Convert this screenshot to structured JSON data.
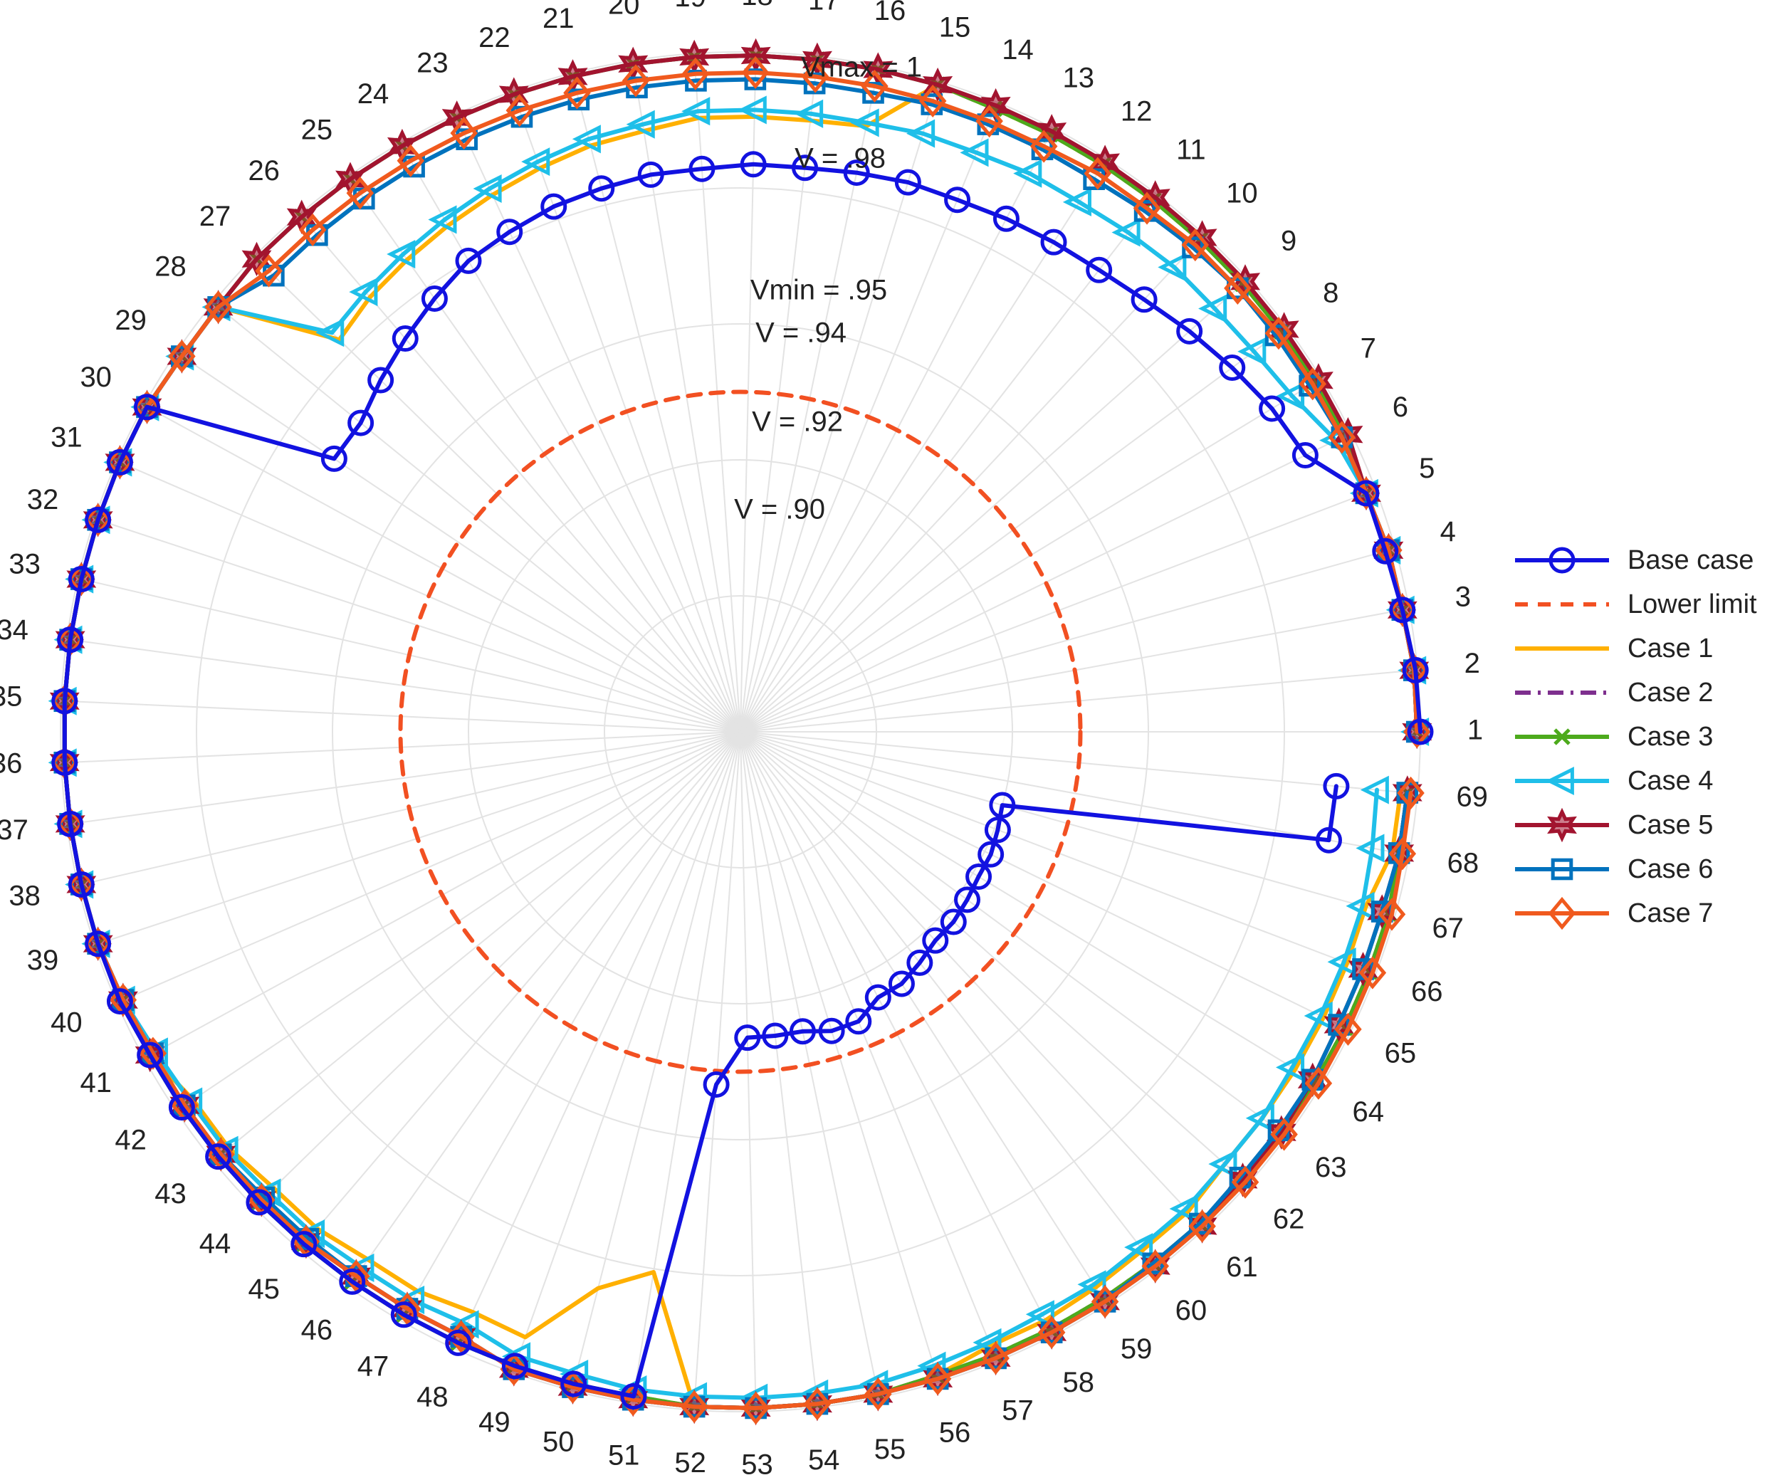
{
  "chart_data": {
    "type": "polar-line",
    "title": "",
    "angular_axis": {
      "labels": [
        "1",
        "2",
        "3",
        "4",
        "5",
        "6",
        "7",
        "8",
        "9",
        "10",
        "11",
        "12",
        "13",
        "14",
        "15",
        "16",
        "17",
        "18",
        "19",
        "20",
        "21",
        "22",
        "23",
        "24",
        "25",
        "26",
        "27",
        "28",
        "29",
        "30",
        "31",
        "32",
        "33",
        "34",
        "35",
        "36",
        "37",
        "38",
        "39",
        "40",
        "41",
        "42",
        "43",
        "44",
        "45",
        "46",
        "47",
        "48",
        "49",
        "50",
        "51",
        "52",
        "53",
        "54",
        "55",
        "56",
        "57",
        "58",
        "59",
        "60",
        "61",
        "62",
        "63",
        "64",
        "65",
        "66",
        "67",
        "68",
        "69"
      ],
      "direction": "counterclockwise",
      "start": "east"
    },
    "radial_axis": {
      "range": [
        0.9,
        1.0
      ],
      "ring_values": [
        1.0,
        0.98,
        0.95,
        0.94,
        0.92,
        0.9
      ],
      "ring_labels": [
        "Vmax = 1",
        "V = .98",
        "Vmin = .95",
        "V = .94",
        "V = .92",
        "V = .90"
      ]
    },
    "legend_position": "right",
    "series": [
      {
        "name": "Base case",
        "color": "#1212e0",
        "dash": "",
        "marker": "circle",
        "values": [
          1.0,
          0.9997,
          0.999,
          0.9985,
          0.9985,
          0.9925,
          0.9915,
          0.99,
          0.9885,
          0.987,
          0.986,
          0.9855,
          0.985,
          0.9845,
          0.9845,
          0.984,
          0.9835,
          0.9835,
          0.983,
          0.983,
          0.9825,
          0.982,
          0.981,
          0.98,
          0.978,
          0.976,
          0.974,
          0.972,
          0.972,
          0.9995,
          0.9995,
          0.9995,
          0.9995,
          0.9995,
          0.9995,
          0.9995,
          0.9995,
          0.9995,
          0.9995,
          0.9995,
          0.999,
          0.999,
          0.999,
          0.999,
          0.999,
          0.999,
          0.999,
          0.999,
          0.999,
          0.999,
          0.999,
          0.952,
          0.945,
          0.945,
          0.945,
          0.946,
          0.946,
          0.944,
          0.944,
          0.943,
          0.942,
          0.942,
          0.9415,
          0.941,
          0.941,
          0.9405,
          0.94,
          0.988,
          0.988
        ]
      },
      {
        "name": "Lower limit",
        "color": "#f25022",
        "dash": "18,14",
        "marker": "none",
        "values": [
          0.95,
          0.95,
          0.95,
          0.95,
          0.95,
          0.95,
          0.95,
          0.95,
          0.95,
          0.95,
          0.95,
          0.95,
          0.95,
          0.95,
          0.95,
          0.95,
          0.95,
          0.95,
          0.95,
          0.95,
          0.95,
          0.95,
          0.95,
          0.95,
          0.95,
          0.95,
          0.95,
          0.95,
          0.95,
          0.95,
          0.95,
          0.95,
          0.95,
          0.95,
          0.95,
          0.95,
          0.95,
          0.95,
          0.95,
          0.95,
          0.95,
          0.95,
          0.95,
          0.95,
          0.95,
          0.95,
          0.95,
          0.95,
          0.95,
          0.95,
          0.95,
          0.95,
          0.95,
          0.95,
          0.95,
          0.95,
          0.95,
          0.95,
          0.95,
          0.95,
          0.95,
          0.95,
          0.95,
          0.95,
          0.95,
          0.95,
          0.95,
          0.95,
          0.95
        ]
      },
      {
        "name": "Case 1",
        "color": "#ffb000",
        "dash": "",
        "marker": "none",
        "values": [
          0.9995,
          0.9995,
          0.999,
          0.999,
          0.9985,
          0.999,
          0.999,
          0.999,
          0.999,
          0.999,
          0.999,
          0.999,
          0.999,
          0.999,
          0.9995,
          0.991,
          0.9905,
          0.9905,
          0.9905,
          0.9895,
          0.989,
          0.988,
          0.987,
          0.986,
          0.985,
          0.984,
          0.9825,
          0.999,
          0.999,
          0.9995,
          0.9995,
          0.9995,
          0.9995,
          0.9995,
          0.9995,
          0.9995,
          0.9995,
          0.9995,
          0.9995,
          0.999,
          0.999,
          0.997,
          0.997,
          0.996,
          0.996,
          0.995,
          0.995,
          0.994,
          0.9945,
          0.9845,
          0.9805,
          0.9995,
          0.9995,
          0.9995,
          0.9995,
          0.999,
          0.9975,
          0.9975,
          0.997,
          0.9965,
          0.9965,
          0.9955,
          0.9955,
          0.9955,
          0.9955,
          0.9955,
          0.9955,
          0.9975,
          0.9975
        ]
      },
      {
        "name": "Case 2",
        "color": "#7e2f8e",
        "dash": "22,10,4,10",
        "marker": "none",
        "values": [
          0.9995,
          0.9995,
          0.999,
          0.999,
          0.9985,
          0.999,
          0.999,
          0.999,
          0.999,
          0.999,
          0.999,
          0.999,
          0.999,
          0.999,
          0.9995,
          0.9995,
          0.9995,
          0.9995,
          0.9995,
          0.9995,
          0.9995,
          0.9995,
          0.9995,
          0.9995,
          0.9995,
          0.9995,
          0.9995,
          0.999,
          0.999,
          0.9995,
          0.9995,
          0.9995,
          0.9995,
          0.9995,
          0.9995,
          0.9995,
          0.9995,
          0.9995,
          0.9995,
          0.999,
          0.999,
          0.999,
          0.999,
          0.999,
          0.999,
          0.999,
          0.999,
          0.999,
          0.999,
          0.999,
          0.999,
          0.9995,
          0.9995,
          0.9995,
          0.9995,
          0.999,
          0.999,
          0.999,
          0.999,
          0.999,
          0.999,
          0.999,
          0.999,
          0.999,
          0.999,
          0.999,
          0.999,
          0.9985,
          0.9985
        ]
      },
      {
        "name": "Case 3",
        "color": "#4daa1c",
        "dash": "",
        "marker": "x",
        "values": [
          0.9995,
          0.9995,
          0.999,
          0.999,
          0.9985,
          0.999,
          0.999,
          0.999,
          0.999,
          0.999,
          0.999,
          0.999,
          0.999,
          0.999,
          0.9995,
          0.9995,
          0.9995,
          0.9995,
          0.9995,
          0.9995,
          0.9995,
          0.9995,
          0.9995,
          0.9995,
          0.9995,
          0.9995,
          0.9995,
          0.999,
          0.999,
          0.9995,
          0.9995,
          0.9995,
          0.9995,
          0.9995,
          0.9995,
          0.9995,
          0.9995,
          0.9995,
          0.9995,
          0.999,
          0.999,
          0.999,
          0.999,
          0.999,
          0.999,
          0.999,
          0.999,
          0.999,
          0.999,
          0.999,
          0.999,
          0.9995,
          0.9995,
          0.9995,
          0.9995,
          0.999,
          0.999,
          0.999,
          0.999,
          0.999,
          0.999,
          0.999,
          0.999,
          0.999,
          0.999,
          0.999,
          0.999,
          0.9985,
          0.9985
        ]
      },
      {
        "name": "Case 4",
        "color": "#1fbfe9",
        "dash": "",
        "marker": "triangle-left",
        "values": [
          0.9995,
          0.9995,
          0.999,
          0.999,
          0.9985,
          0.9975,
          0.995,
          0.994,
          0.9935,
          0.9935,
          0.993,
          0.9925,
          0.9925,
          0.992,
          0.992,
          0.9915,
          0.9915,
          0.9915,
          0.9915,
          0.9905,
          0.99,
          0.989,
          0.988,
          0.987,
          0.986,
          0.985,
          0.984,
          0.999,
          0.999,
          0.9995,
          0.9995,
          0.9995,
          0.9995,
          0.9995,
          0.9995,
          0.9995,
          0.9995,
          0.9995,
          0.9995,
          0.999,
          0.998,
          0.9975,
          0.9975,
          0.997,
          0.997,
          0.9965,
          0.9965,
          0.996,
          0.9975,
          0.9975,
          0.998,
          0.998,
          0.998,
          0.998,
          0.998,
          0.9975,
          0.997,
          0.9965,
          0.9965,
          0.996,
          0.996,
          0.9955,
          0.9955,
          0.995,
          0.995,
          0.995,
          0.995,
          0.9945,
          0.994
        ]
      },
      {
        "name": "Case 5",
        "color": "#a2142f",
        "dash": "",
        "marker": "hexagram",
        "values": [
          0.9995,
          0.9995,
          0.999,
          0.999,
          0.9985,
          0.9995,
          0.9995,
          0.9995,
          0.9995,
          0.9995,
          0.9995,
          0.9995,
          0.9995,
          0.9995,
          0.9995,
          0.9995,
          0.9995,
          0.9995,
          0.9995,
          0.9995,
          0.9995,
          0.9995,
          0.9995,
          0.9995,
          0.9995,
          0.9995,
          0.9995,
          0.999,
          0.999,
          0.9995,
          0.9995,
          0.9995,
          0.9995,
          0.9995,
          0.9995,
          0.9995,
          0.9995,
          0.9995,
          0.9995,
          0.999,
          0.999,
          0.9985,
          0.9985,
          0.9985,
          0.9985,
          0.998,
          0.998,
          0.998,
          0.9995,
          0.9995,
          0.9995,
          0.9995,
          0.9995,
          0.9995,
          0.9995,
          0.9995,
          0.9995,
          0.9995,
          0.9995,
          0.9995,
          0.9995,
          0.999,
          0.999,
          0.9985,
          0.998,
          0.998,
          0.998,
          0.9985,
          0.9985
        ]
      },
      {
        "name": "Case 6",
        "color": "#0072bd",
        "dash": "",
        "marker": "square",
        "values": [
          0.9995,
          0.9995,
          0.999,
          0.999,
          0.9985,
          0.9985,
          0.998,
          0.998,
          0.998,
          0.9975,
          0.997,
          0.9965,
          0.9965,
          0.9965,
          0.9965,
          0.996,
          0.996,
          0.996,
          0.996,
          0.996,
          0.996,
          0.996,
          0.996,
          0.996,
          0.996,
          0.996,
          0.996,
          0.999,
          0.999,
          0.9995,
          0.9995,
          0.9995,
          0.9995,
          0.9995,
          0.9995,
          0.9995,
          0.9995,
          0.9995,
          0.9995,
          0.999,
          0.9985,
          0.9985,
          0.9985,
          0.998,
          0.998,
          0.998,
          0.998,
          0.998,
          0.9995,
          0.9995,
          0.9995,
          0.9995,
          0.9995,
          0.9995,
          0.9995,
          0.9995,
          0.9995,
          0.9995,
          0.9995,
          0.999,
          0.999,
          0.9985,
          0.9985,
          0.9985,
          0.998,
          0.998,
          0.998,
          0.9985,
          0.9985
        ]
      },
      {
        "name": "Case 7",
        "color": "#f05a1e",
        "dash": "",
        "marker": "diamond",
        "values": [
          0.9995,
          0.9995,
          0.999,
          0.999,
          0.9985,
          0.9985,
          0.9985,
          0.9985,
          0.998,
          0.998,
          0.9975,
          0.9975,
          0.997,
          0.997,
          0.997,
          0.997,
          0.997,
          0.997,
          0.997,
          0.997,
          0.997,
          0.997,
          0.997,
          0.997,
          0.997,
          0.997,
          0.997,
          0.999,
          0.999,
          0.9995,
          0.9995,
          0.9995,
          0.9995,
          0.9995,
          0.9995,
          0.9995,
          0.9995,
          0.9995,
          0.9995,
          0.999,
          0.9985,
          0.9985,
          0.9985,
          0.9985,
          0.9985,
          0.998,
          0.998,
          0.998,
          0.9995,
          0.9995,
          0.9995,
          0.9995,
          0.9995,
          0.9995,
          0.9995,
          0.9995,
          0.9995,
          0.9995,
          0.9995,
          0.9995,
          0.9995,
          0.9995,
          0.9995,
          0.9995,
          0.9995,
          0.9995,
          0.9995,
          0.999,
          0.999
        ]
      }
    ]
  }
}
